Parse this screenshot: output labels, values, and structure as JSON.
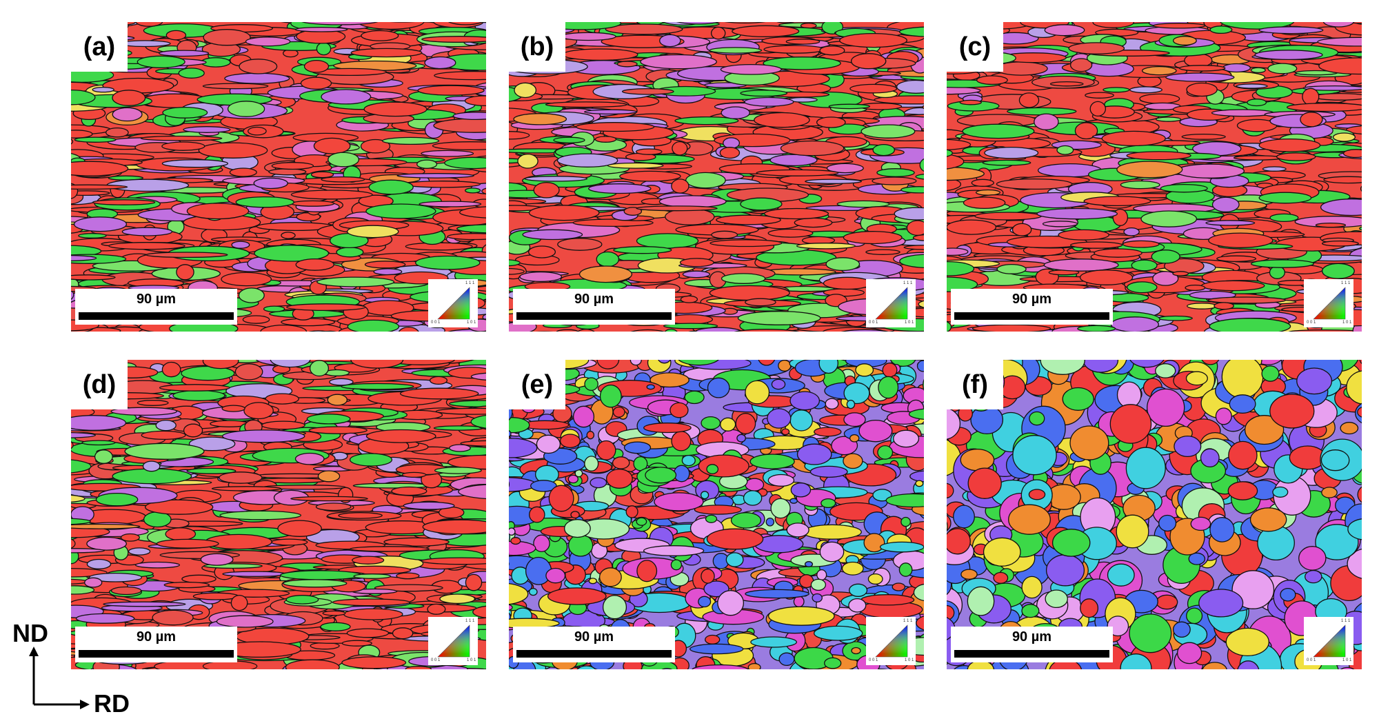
{
  "panels": [
    {
      "label": "(a)",
      "scale_bar": "90 µm"
    },
    {
      "label": "(b)",
      "scale_bar": "90 µm"
    },
    {
      "label": "(c)",
      "scale_bar": "90 µm"
    },
    {
      "label": "(d)",
      "scale_bar": "90 µm"
    },
    {
      "label": "(e)",
      "scale_bar": "90 µm"
    },
    {
      "label": "(f)",
      "scale_bar": "90 µm"
    }
  ],
  "ipf_key": {
    "labels": [
      "0 0 1",
      "1 0 1",
      "1 1 1"
    ]
  },
  "axes": {
    "vertical": "ND",
    "horizontal": "RD"
  }
}
